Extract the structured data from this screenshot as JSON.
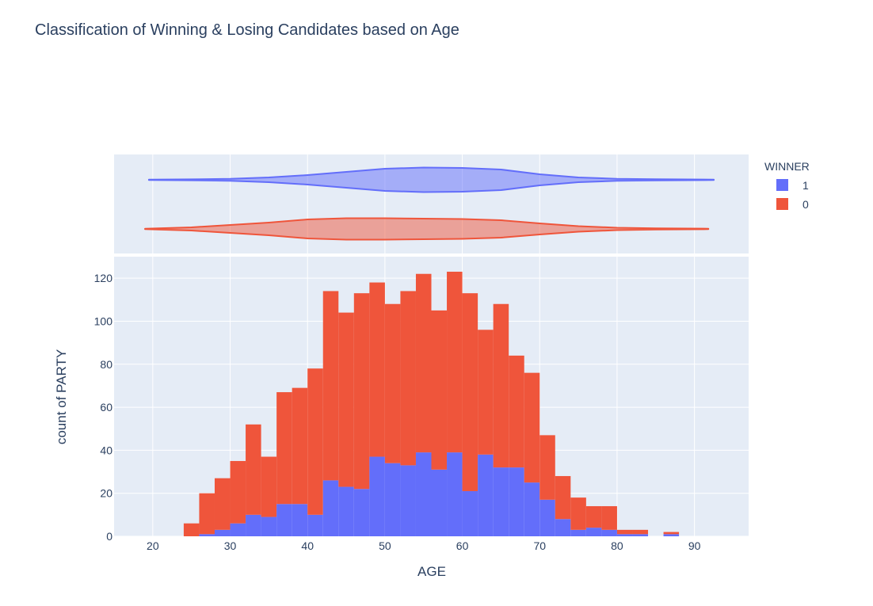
{
  "chart_data": {
    "type": "bar",
    "barmode": "stack",
    "title": "Classification of Winning & Losing Candidates based on Age",
    "xlabel": "AGE",
    "ylabel": "count of PARTY",
    "xlim": [
      15,
      97
    ],
    "ylim": [
      0,
      130
    ],
    "x_ticks": [
      20,
      30,
      40,
      50,
      60,
      70,
      80,
      90
    ],
    "y_ticks": [
      0,
      20,
      40,
      60,
      80,
      100,
      120
    ],
    "bin_start": 24,
    "bin_width": 2,
    "grid": true,
    "legend": {
      "title": "WINNER",
      "placement": "top-right",
      "items": [
        {
          "label": "1",
          "color": "#636efa"
        },
        {
          "label": "0",
          "color": "#ef553b"
        }
      ]
    },
    "series": [
      {
        "name": "1",
        "color": "#636efa",
        "values": [
          0,
          1,
          3,
          6,
          10,
          9,
          15,
          15,
          10,
          26,
          23,
          22,
          37,
          34,
          33,
          39,
          31,
          39,
          21,
          38,
          32,
          32,
          25,
          17,
          8,
          3,
          4,
          3,
          1,
          1,
          0,
          1,
          0,
          0,
          0
        ]
      },
      {
        "name": "0",
        "color": "#ef553b",
        "values": [
          6,
          19,
          24,
          29,
          42,
          28,
          52,
          54,
          68,
          88,
          81,
          91,
          81,
          74,
          81,
          83,
          74,
          84,
          92,
          58,
          76,
          52,
          51,
          30,
          20,
          15,
          10,
          11,
          2,
          2,
          0,
          1,
          0,
          0,
          0
        ]
      }
    ],
    "violins": [
      {
        "name": "1",
        "color": "#636efa",
        "min": 19.5,
        "max": 92.5,
        "profile": [
          [
            19.5,
            0.3
          ],
          [
            25,
            0.6
          ],
          [
            30,
            1.2
          ],
          [
            35,
            3
          ],
          [
            40,
            6
          ],
          [
            45,
            10
          ],
          [
            50,
            14
          ],
          [
            55,
            15.5
          ],
          [
            60,
            15
          ],
          [
            65,
            13
          ],
          [
            70,
            7
          ],
          [
            75,
            3
          ],
          [
            80,
            1.3
          ],
          [
            85,
            0.8
          ],
          [
            92.5,
            0.3
          ]
        ]
      },
      {
        "name": "0",
        "color": "#ef553b",
        "min": 19,
        "max": 91.8,
        "profile": [
          [
            19,
            0.3
          ],
          [
            25,
            2
          ],
          [
            30,
            5
          ],
          [
            35,
            8
          ],
          [
            40,
            12
          ],
          [
            45,
            13.5
          ],
          [
            50,
            13.5
          ],
          [
            55,
            13
          ],
          [
            60,
            12.5
          ],
          [
            65,
            11
          ],
          [
            70,
            7
          ],
          [
            75,
            3.5
          ],
          [
            80,
            1.5
          ],
          [
            85,
            0.8
          ],
          [
            91.8,
            0.3
          ]
        ]
      }
    ]
  }
}
